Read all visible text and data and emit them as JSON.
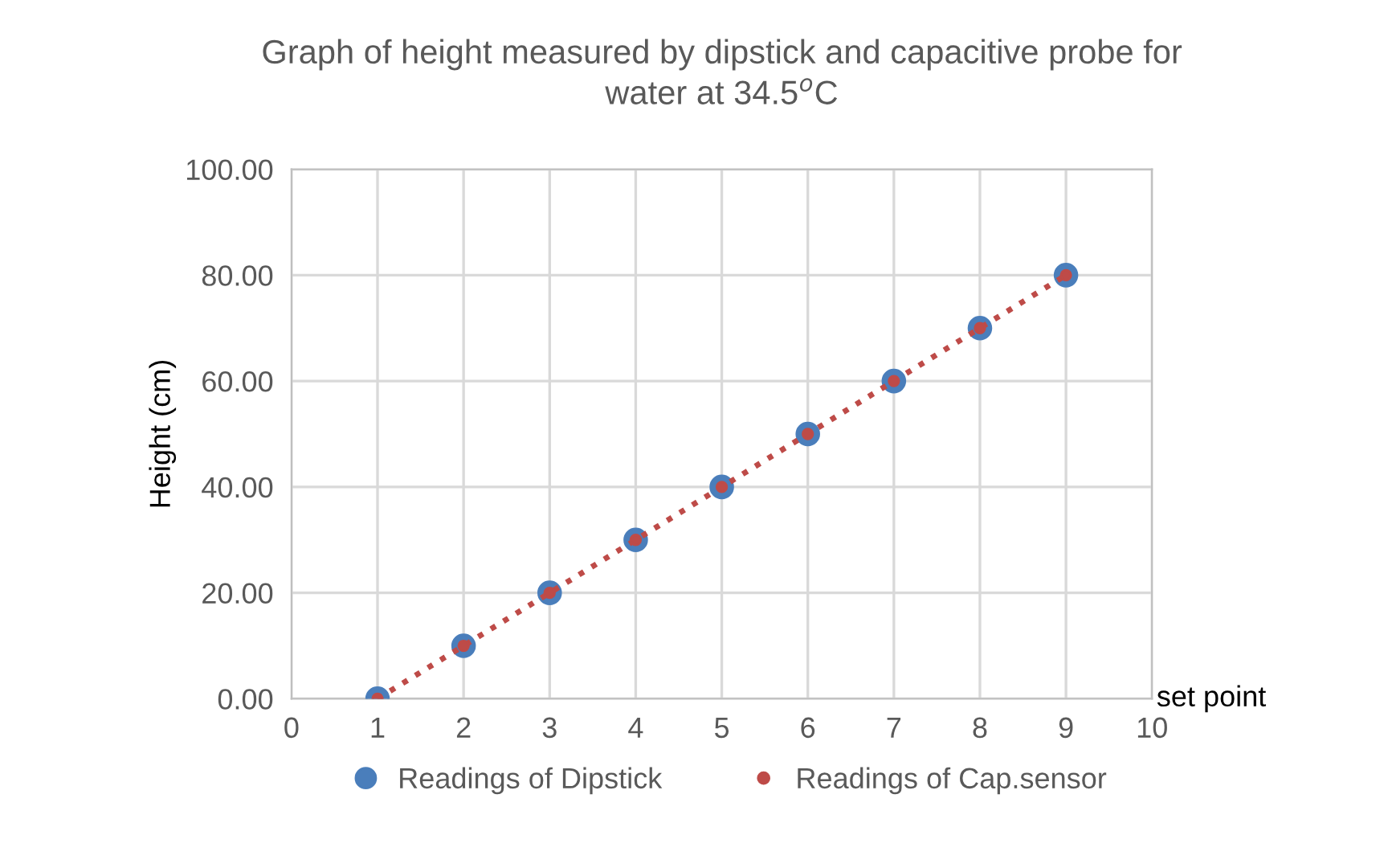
{
  "chart_data": {
    "type": "scatter",
    "title": "Graph of height measured by dipstick and capacitive probe for water at 34.5$^{o}$C",
    "xlabel": "set point",
    "ylabel": "Height (cm)",
    "x": [
      1,
      2,
      3,
      4,
      5,
      6,
      7,
      8,
      9
    ],
    "series": [
      {
        "name": "Readings of Dipstick",
        "color": "#4a7ebb",
        "marker": "circle",
        "values": [
          0,
          10,
          20,
          30,
          40,
          50,
          60,
          70,
          80
        ]
      },
      {
        "name": "Readings of Cap.sensor",
        "type": "line",
        "color": "#be4b48",
        "marker": "circle",
        "line_style": "dotted",
        "values": [
          0,
          10,
          20,
          30,
          40,
          50,
          60,
          70,
          80
        ]
      }
    ],
    "xlim": [
      0,
      10
    ],
    "xticks": [
      0,
      1,
      2,
      3,
      4,
      5,
      6,
      7,
      8,
      9,
      10
    ],
    "ylim": [
      0,
      100
    ],
    "yticks": [
      {
        "value": 0,
        "label": "0.00"
      },
      {
        "value": 20,
        "label": "20.00"
      },
      {
        "value": 40,
        "label": "40.00"
      },
      {
        "value": 60,
        "label": "60.00"
      },
      {
        "value": 80,
        "label": "80.00"
      },
      {
        "value": 100,
        "label": "100.00"
      }
    ],
    "grid": true,
    "legend": "bottom"
  }
}
